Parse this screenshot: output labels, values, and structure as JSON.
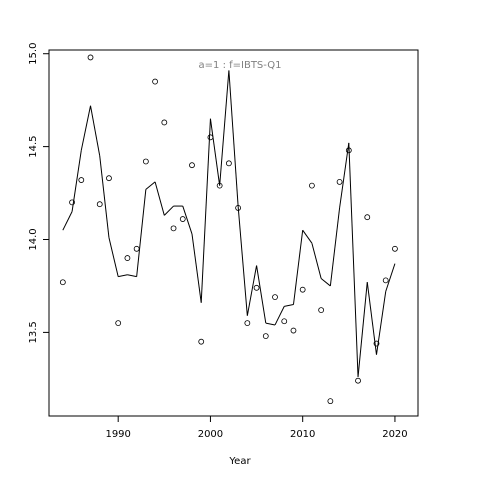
{
  "chart_data": {
    "type": "scatter",
    "title": "a=1  :  f=IBTS-Q1",
    "xlabel": "Year",
    "ylabel": "",
    "xlim": [
      1982.5,
      2022.5
    ],
    "ylim": [
      13.05,
      15.02
    ],
    "x_ticks": [
      1990,
      2000,
      2010,
      2020
    ],
    "y_ticks": [
      13.5,
      14.0,
      14.5,
      15.0
    ],
    "x_tick_labels": [
      "1990",
      "2000",
      "2010",
      "2020"
    ],
    "y_tick_labels": [
      "13.5",
      "14.0",
      "14.5",
      "15.0"
    ],
    "grid": false,
    "series": [
      {
        "kind": "points",
        "marker": "open-circle",
        "x": [
          1984,
          1985,
          1986,
          1987,
          1988,
          1989,
          1990,
          1991,
          1992,
          1993,
          1994,
          1995,
          1996,
          1997,
          1998,
          1999,
          2000,
          2001,
          2002,
          2003,
          2004,
          2005,
          2006,
          2007,
          2008,
          2009,
          2010,
          2011,
          2012,
          2013,
          2014,
          2015,
          2016,
          2017,
          2018,
          2019,
          2020
        ],
        "values": [
          13.77,
          14.2,
          14.32,
          14.98,
          14.19,
          14.33,
          13.55,
          13.9,
          13.95,
          14.42,
          14.85,
          14.63,
          14.06,
          14.11,
          14.4,
          13.45,
          14.55,
          14.29,
          14.41,
          14.17,
          13.55,
          13.74,
          13.48,
          13.69,
          13.56,
          13.51,
          13.73,
          14.29,
          13.62,
          13.13,
          14.31,
          14.48,
          13.24,
          14.12,
          13.44,
          13.78,
          13.95
        ]
      },
      {
        "kind": "line",
        "x": [
          1984,
          1985,
          1986,
          1987,
          1988,
          1989,
          1990,
          1991,
          1992,
          1993,
          1994,
          1995,
          1996,
          1997,
          1998,
          1999,
          2000,
          2001,
          2002,
          2003,
          2004,
          2005,
          2006,
          2007,
          2008,
          2009,
          2010,
          2011,
          2012,
          2013,
          2014,
          2015,
          2016,
          2017,
          2018,
          2019,
          2020
        ],
        "values": [
          14.05,
          14.15,
          14.48,
          14.72,
          14.45,
          14.01,
          13.8,
          13.81,
          13.8,
          14.27,
          14.31,
          14.13,
          14.18,
          14.18,
          14.03,
          13.66,
          14.65,
          14.29,
          14.91,
          14.18,
          13.59,
          13.86,
          13.55,
          13.54,
          13.64,
          13.65,
          14.05,
          13.98,
          13.79,
          13.75,
          14.17,
          14.52,
          13.26,
          13.77,
          13.38,
          13.72,
          13.87
        ]
      }
    ]
  }
}
